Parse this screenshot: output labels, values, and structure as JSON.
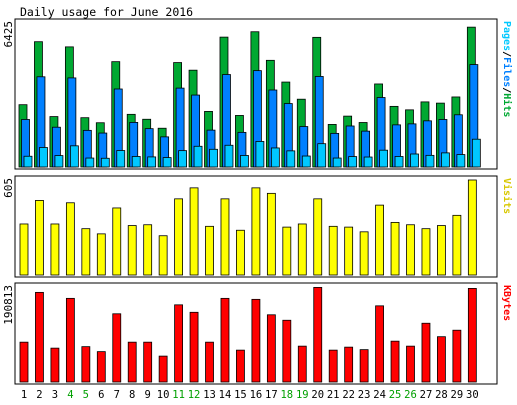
{
  "chart_data": {
    "type": "bar",
    "title": "Daily usage for June 2016",
    "categories": [
      "1",
      "2",
      "3",
      "4",
      "5",
      "6",
      "7",
      "8",
      "9",
      "10",
      "11",
      "12",
      "13",
      "14",
      "15",
      "16",
      "17",
      "18",
      "19",
      "20",
      "21",
      "22",
      "23",
      "24",
      "25",
      "26",
      "27",
      "28",
      "29",
      "30"
    ],
    "weekend_days": [
      "4",
      "5",
      "11",
      "12",
      "18",
      "19",
      "25",
      "26"
    ],
    "colors": {
      "hits": "#00a832",
      "files": "#0080ff",
      "pages": "#00c8ff",
      "visits": "#ffff00",
      "kbytes": "#ff0000",
      "weekend_label": "#00a000",
      "weekday_label": "#000000"
    },
    "panels": [
      {
        "id": "hits",
        "max_label": "6425",
        "ylim": [
          0,
          6425
        ],
        "legend": [
          {
            "text": "Pages",
            "color": "#00c8ff"
          },
          {
            "text": "/",
            "color": "#000000"
          },
          {
            "text": "Files",
            "color": "#0080ff"
          },
          {
            "text": "/",
            "color": "#000000"
          },
          {
            "text": "Hits",
            "color": "#00a832"
          }
        ],
        "series": [
          {
            "name": "Hits",
            "color": "#00a832",
            "values": [
              2780,
              5590,
              2250,
              5360,
              2200,
              1975,
              4700,
              2350,
              2130,
              1730,
              4660,
              4320,
              2480,
              5795,
              2300,
              6035,
              4760,
              3790,
              3025,
              5785,
              1900,
              2270,
              1985,
              3705,
              2705,
              2550,
              2905,
              2850,
              3125,
              6240
            ]
          },
          {
            "name": "Files",
            "color": "#0080ff",
            "values": [
              2120,
              4025,
              1775,
              3975,
              1635,
              1515,
              3480,
              1990,
              1710,
              1345,
              3520,
              3210,
              1645,
              4125,
              1545,
              4300,
              3435,
              2830,
              1805,
              4040,
              1500,
              1830,
              1600,
              3100,
              1880,
              1925,
              2060,
              2120,
              2330,
              4570
            ]
          },
          {
            "name": "Pages",
            "color": "#00c8ff",
            "values": [
              480,
              870,
              510,
              945,
              400,
              390,
              735,
              470,
              450,
              420,
              730,
              925,
              790,
              970,
              515,
              1140,
              850,
              720,
              490,
              1040,
              400,
              465,
              445,
              750,
              470,
              580,
              520,
              630,
              555,
              1240
            ]
          }
        ]
      },
      {
        "id": "visits",
        "max_label": "605",
        "ylim": [
          0,
          605
        ],
        "legend": [
          {
            "text": "Visits",
            "color": "#d8c800"
          }
        ],
        "series": [
          {
            "name": "Visits",
            "color": "#ffff00",
            "values": [
              325,
              475,
              325,
              460,
              295,
              262,
              427,
              315,
              320,
              250,
              485,
              555,
              310,
              485,
              285,
              555,
              520,
              305,
              325,
              485,
              310,
              305,
              275,
              445,
              335,
              320,
              295,
              315,
              380,
              605
            ]
          }
        ]
      },
      {
        "id": "kbytes",
        "max_label": "190813",
        "ylim": [
          0,
          190813
        ],
        "legend": [
          {
            "text": "KBytes",
            "color": "#ff0000"
          }
        ],
        "series": [
          {
            "name": "KBytes",
            "color": "#ff0000",
            "values": [
              80000,
              180000,
              68000,
              168000,
              71000,
              61000,
              137000,
              80000,
              80000,
              52000,
              155000,
              140000,
              80000,
              168000,
              64000,
              166000,
              135000,
              124000,
              72000,
              190000,
              64000,
              70000,
              65000,
              153000,
              82000,
              72000,
              118000,
              91000,
              104000,
              188000
            ]
          }
        ]
      }
    ]
  }
}
